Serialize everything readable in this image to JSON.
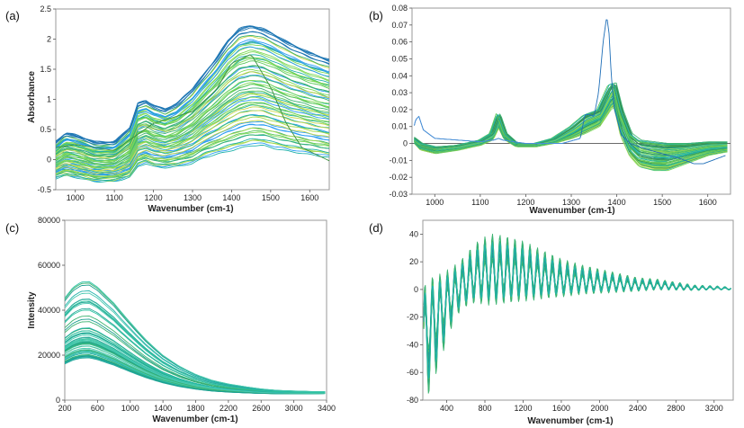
{
  "chart_data": [
    {
      "panel": "(a)",
      "type": "line",
      "xlabel": "Wavenumber (cm-1)",
      "ylabel": "Absorbance",
      "xlim": [
        950,
        1650
      ],
      "ylim": [
        -0.5,
        2.5
      ],
      "xticks": [
        1000,
        1100,
        1200,
        1300,
        1400,
        1500,
        1600
      ],
      "yticks": [
        -0.5,
        0,
        0.5,
        1,
        1.5,
        2,
        2.5
      ],
      "ytick_labels": [
        "-0.5",
        "0",
        "0.5",
        "1",
        "1.5",
        "2",
        "2.5"
      ],
      "envelope": {
        "x": [
          950,
          975,
          1000,
          1050,
          1100,
          1140,
          1160,
          1180,
          1200,
          1230,
          1260,
          1300,
          1330,
          1360,
          1390,
          1420,
          1450,
          1480,
          1510,
          1550,
          1600,
          1650
        ],
        "high": [
          0.3,
          0.45,
          0.42,
          0.3,
          0.3,
          0.55,
          0.95,
          1.0,
          0.92,
          0.85,
          0.95,
          1.2,
          1.45,
          1.7,
          2.0,
          2.2,
          2.25,
          2.2,
          2.1,
          1.95,
          1.8,
          1.68
        ],
        "low": [
          -0.3,
          -0.25,
          -0.28,
          -0.35,
          -0.35,
          -0.28,
          -0.1,
          -0.05,
          -0.1,
          -0.12,
          -0.1,
          -0.05,
          0.05,
          0.1,
          0.15,
          0.2,
          0.25,
          0.25,
          0.2,
          0.15,
          0.1,
          0.05
        ]
      },
      "n_curves": 70,
      "outlier": {
        "x": [
          950,
          1000,
          1100,
          1200,
          1300,
          1360,
          1400,
          1450,
          1500,
          1540,
          1580,
          1650
        ],
        "y": [
          0.2,
          0.25,
          0.15,
          0.6,
          0.8,
          1.15,
          1.6,
          1.75,
          1.2,
          0.6,
          0.2,
          -0.02
        ]
      },
      "colors": [
        "#1f77b4",
        "#2a9df4",
        "#20b2aa",
        "#3cb371",
        "#5cc85c",
        "#7ed957",
        "#a5d94f",
        "#c8d64a"
      ]
    },
    {
      "panel": "(b)",
      "type": "line",
      "xlabel": "Wavenumber (cm-1)",
      "xlim": [
        950,
        1650
      ],
      "ylim": [
        -0.03,
        0.08
      ],
      "xticks": [
        1000,
        1100,
        1200,
        1300,
        1400,
        1500,
        1600
      ],
      "yticks": [
        -0.03,
        -0.02,
        -0.01,
        0,
        0.01,
        0.02,
        0.03,
        0.04,
        0.05,
        0.06,
        0.07,
        0.08
      ],
      "ytick_labels": [
        "-0.03",
        "-0.02",
        "-0.01",
        "0",
        "0.01",
        "0.02",
        "0.03",
        "0.04",
        "0.05",
        "0.06",
        "0.07",
        "0.08"
      ],
      "main_curve": {
        "x": [
          950,
          958,
          965,
          975,
          1000,
          1100,
          1130,
          1140,
          1150,
          1200,
          1280,
          1320,
          1330,
          1340,
          1350,
          1360,
          1370,
          1378,
          1383,
          1388,
          1395,
          1410,
          1430,
          1460,
          1500,
          1540,
          1570,
          1590,
          1610,
          1640
        ],
        "y": [
          0.005,
          0.014,
          0.016,
          0.008,
          0.003,
          0.001,
          0.002,
          0.003,
          0.002,
          0.0,
          0.0,
          0.003,
          0.017,
          0.017,
          0.016,
          0.03,
          0.06,
          0.075,
          0.065,
          0.04,
          0.02,
          0.005,
          0.0,
          -0.003,
          -0.006,
          -0.009,
          -0.012,
          -0.012,
          -0.01,
          -0.007
        ]
      },
      "envelope": {
        "x": [
          950,
          970,
          1000,
          1050,
          1100,
          1125,
          1140,
          1155,
          1180,
          1220,
          1260,
          1300,
          1330,
          1360,
          1385,
          1395,
          1410,
          1430,
          1450,
          1480,
          1510,
          1550,
          1600,
          1640
        ],
        "high": [
          0.004,
          0.0,
          -0.002,
          -0.001,
          0.002,
          0.006,
          0.018,
          0.006,
          0.0,
          0.0,
          0.003,
          0.01,
          0.017,
          0.02,
          0.035,
          0.036,
          0.02,
          0.006,
          0.002,
          0.001,
          0.0,
          0.0,
          0.001,
          0.001
        ],
        "low": [
          0.002,
          -0.004,
          -0.006,
          -0.004,
          -0.001,
          0.002,
          0.01,
          0.002,
          -0.002,
          -0.002,
          0.0,
          0.003,
          0.006,
          0.01,
          0.02,
          0.022,
          0.004,
          -0.008,
          -0.014,
          -0.016,
          -0.016,
          -0.012,
          -0.007,
          -0.005
        ]
      },
      "n_curves": 45,
      "colors": [
        "#3cb371",
        "#5cc85c",
        "#7ed957",
        "#20b2aa",
        "#a5d94f",
        "#2e8b57"
      ]
    },
    {
      "panel": "(c)",
      "type": "line",
      "xlabel": "Wavenumber (cm-1)",
      "ylabel": "Intensity",
      "xlim": [
        200,
        3400
      ],
      "ylim": [
        0,
        80000
      ],
      "xticks": [
        200,
        600,
        1000,
        1400,
        1800,
        2200,
        2600,
        3000,
        3400
      ],
      "yticks": [
        0,
        20000,
        40000,
        60000,
        80000
      ],
      "ytick_labels": [
        "0",
        "20000",
        "40000",
        "60000",
        "80000"
      ],
      "shape": {
        "x": [
          200,
          300,
          400,
          500,
          600,
          800,
          1000,
          1200,
          1400,
          1600,
          1800,
          2000,
          2200,
          2400,
          2600,
          2800,
          3000,
          3200,
          3400
        ],
        "f": [
          0.82,
          0.92,
          0.98,
          1.0,
          0.97,
          0.86,
          0.71,
          0.56,
          0.43,
          0.33,
          0.25,
          0.19,
          0.15,
          0.12,
          0.09,
          0.07,
          0.06,
          0.05,
          0.045
        ]
      },
      "peak_max": 60000,
      "peak_min": 10000,
      "n_curves": 60,
      "colors": [
        "#1a9e8f",
        "#20b2aa",
        "#2ec4a0",
        "#3cb371",
        "#28a89a",
        "#48c9b0"
      ]
    },
    {
      "panel": "(d)",
      "type": "line",
      "xlabel": "Wavenumber (cm-1)",
      "xlim": [
        150,
        3400
      ],
      "ylim": [
        -80,
        50
      ],
      "xticks": [
        400,
        800,
        1200,
        1600,
        2000,
        2400,
        2800,
        3200
      ],
      "yticks": [
        -80,
        -60,
        -40,
        -20,
        0,
        20,
        40
      ],
      "ytick_labels": [
        "-80",
        "-60",
        "-40",
        "-20",
        "0",
        "20",
        "40"
      ],
      "envelope": {
        "x": [
          150,
          250,
          350,
          450,
          550,
          700,
          850,
          1000,
          1200,
          1400,
          1600,
          1800,
          2000,
          2200,
          2400,
          2600,
          2800,
          3000,
          3200,
          3400
        ],
        "amp": [
          45,
          40,
          30,
          22,
          18,
          22,
          26,
          25,
          22,
          18,
          14,
          11,
          9,
          7,
          5,
          4,
          3,
          2,
          1.5,
          1
        ],
        "mid": [
          -35,
          -25,
          -15,
          -5,
          3,
          10,
          12,
          12,
          11,
          9,
          7,
          6,
          5,
          4,
          3,
          3,
          2,
          1,
          1,
          0.5
        ]
      },
      "n_curves": 30,
      "colors": [
        "#1f77b4",
        "#1a9e8f",
        "#20b2aa",
        "#3cb371",
        "#5cc85c",
        "#c8b632"
      ]
    }
  ]
}
